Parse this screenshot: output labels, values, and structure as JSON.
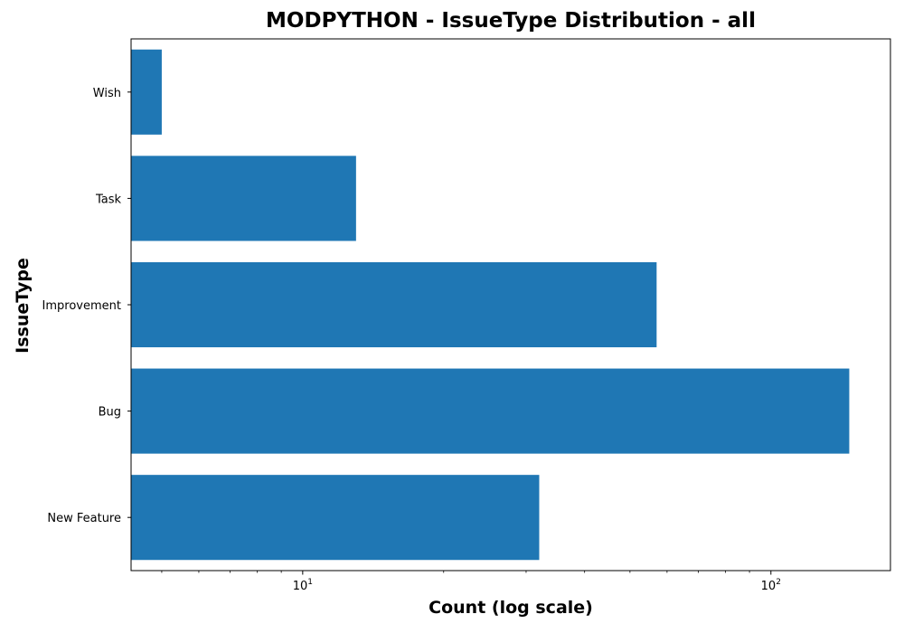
{
  "chart_data": {
    "type": "bar",
    "orientation": "horizontal",
    "title": "MODPYTHON - IssueType Distribution - all",
    "xlabel": "Count (log scale)",
    "ylabel": "IssueType",
    "x_scale": "log",
    "xlim": [
      4.3,
      180
    ],
    "x_ticks": [
      {
        "value": 10,
        "base": "10",
        "exp": "1"
      },
      {
        "value": 100,
        "base": "10",
        "exp": "2"
      }
    ],
    "categories": [
      "New Feature",
      "Bug",
      "Improvement",
      "Task",
      "Wish"
    ],
    "values": [
      32,
      147,
      57,
      13,
      5
    ],
    "bar_color": "#1f77b4",
    "grid": false,
    "legend": "none"
  }
}
